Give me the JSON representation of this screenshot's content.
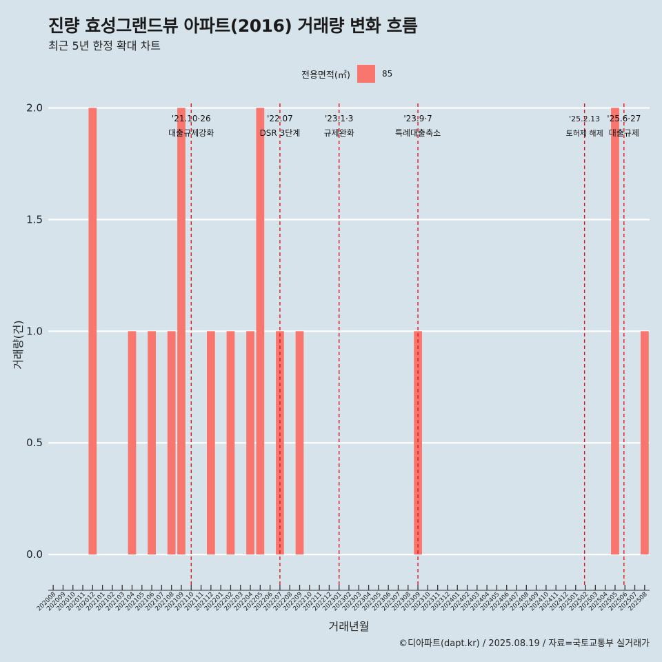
{
  "title": "진량 효성그랜드뷰 아파트(2016) 거래량 변화 흐름",
  "subtitle": "최근 5년 한정 확대 차트",
  "legend": {
    "title": "전용면적(㎡)",
    "label": "85",
    "color": "#f8766d"
  },
  "caption": "©디아파트(dapt.kr) / 2025.08.19 / 자료=국토교통부 실거래가",
  "chart_data": {
    "type": "bar",
    "xlabel": "거래년월",
    "ylabel": "거래량(건)",
    "ylim": [
      -0.12,
      2.02
    ],
    "yticks": [
      "0.0",
      "0.5",
      "1.0",
      "1.5",
      "2.0"
    ],
    "categories": [
      "202008",
      "202009",
      "202010",
      "202011",
      "202012",
      "202101",
      "202102",
      "202103",
      "202104",
      "202105",
      "202106",
      "202107",
      "202108",
      "202109",
      "202110",
      "202111",
      "202112",
      "202201",
      "202202",
      "202203",
      "202204",
      "202205",
      "202206",
      "202207",
      "202208",
      "202209",
      "202210",
      "202211",
      "202212",
      "202301",
      "202302",
      "202303",
      "202304",
      "202305",
      "202306",
      "202307",
      "202308",
      "202309",
      "202310",
      "202311",
      "202312",
      "202401",
      "202402",
      "202403",
      "202404",
      "202405",
      "202406",
      "202407",
      "202408",
      "202409",
      "202410",
      "202411",
      "202412",
      "202501",
      "202502",
      "202503",
      "202504",
      "202505",
      "202506",
      "202507",
      "202508"
    ],
    "series": [
      {
        "name": "85",
        "color": "#f8766d",
        "values": [
          0,
          0,
          0,
          0,
          2,
          0,
          0,
          0,
          1,
          0,
          1,
          0,
          1,
          2,
          0,
          0,
          1,
          0,
          1,
          0,
          1,
          2,
          0,
          1,
          0,
          1,
          0,
          0,
          0,
          0,
          0,
          0,
          0,
          0,
          0,
          0,
          0,
          1,
          0,
          0,
          0,
          0,
          0,
          0,
          0,
          0,
          0,
          0,
          0,
          0,
          0,
          0,
          0,
          0,
          0,
          0,
          0,
          2,
          0,
          0,
          1
        ]
      }
    ],
    "annotations": [
      {
        "x": 14.5,
        "line1": "'21.10·26",
        "line2": "대출규제강화",
        "small": false
      },
      {
        "x": 23.5,
        "line1": "'22.07",
        "line2": "DSR 3단계",
        "small": false
      },
      {
        "x": 29.5,
        "line1": "'23.1·3",
        "line2": "규제완화",
        "small": false
      },
      {
        "x": 37.5,
        "line1": "'23.9·7",
        "line2": "특례대출축소",
        "small": false
      },
      {
        "x": 54.4,
        "line1": "'25.2.13",
        "line2": "토허제 해제",
        "small": true
      },
      {
        "x": 58.4,
        "line1": "'25.6·27",
        "line2": "대출규제",
        "small": false
      }
    ],
    "grid": true,
    "legend_position": "top"
  }
}
